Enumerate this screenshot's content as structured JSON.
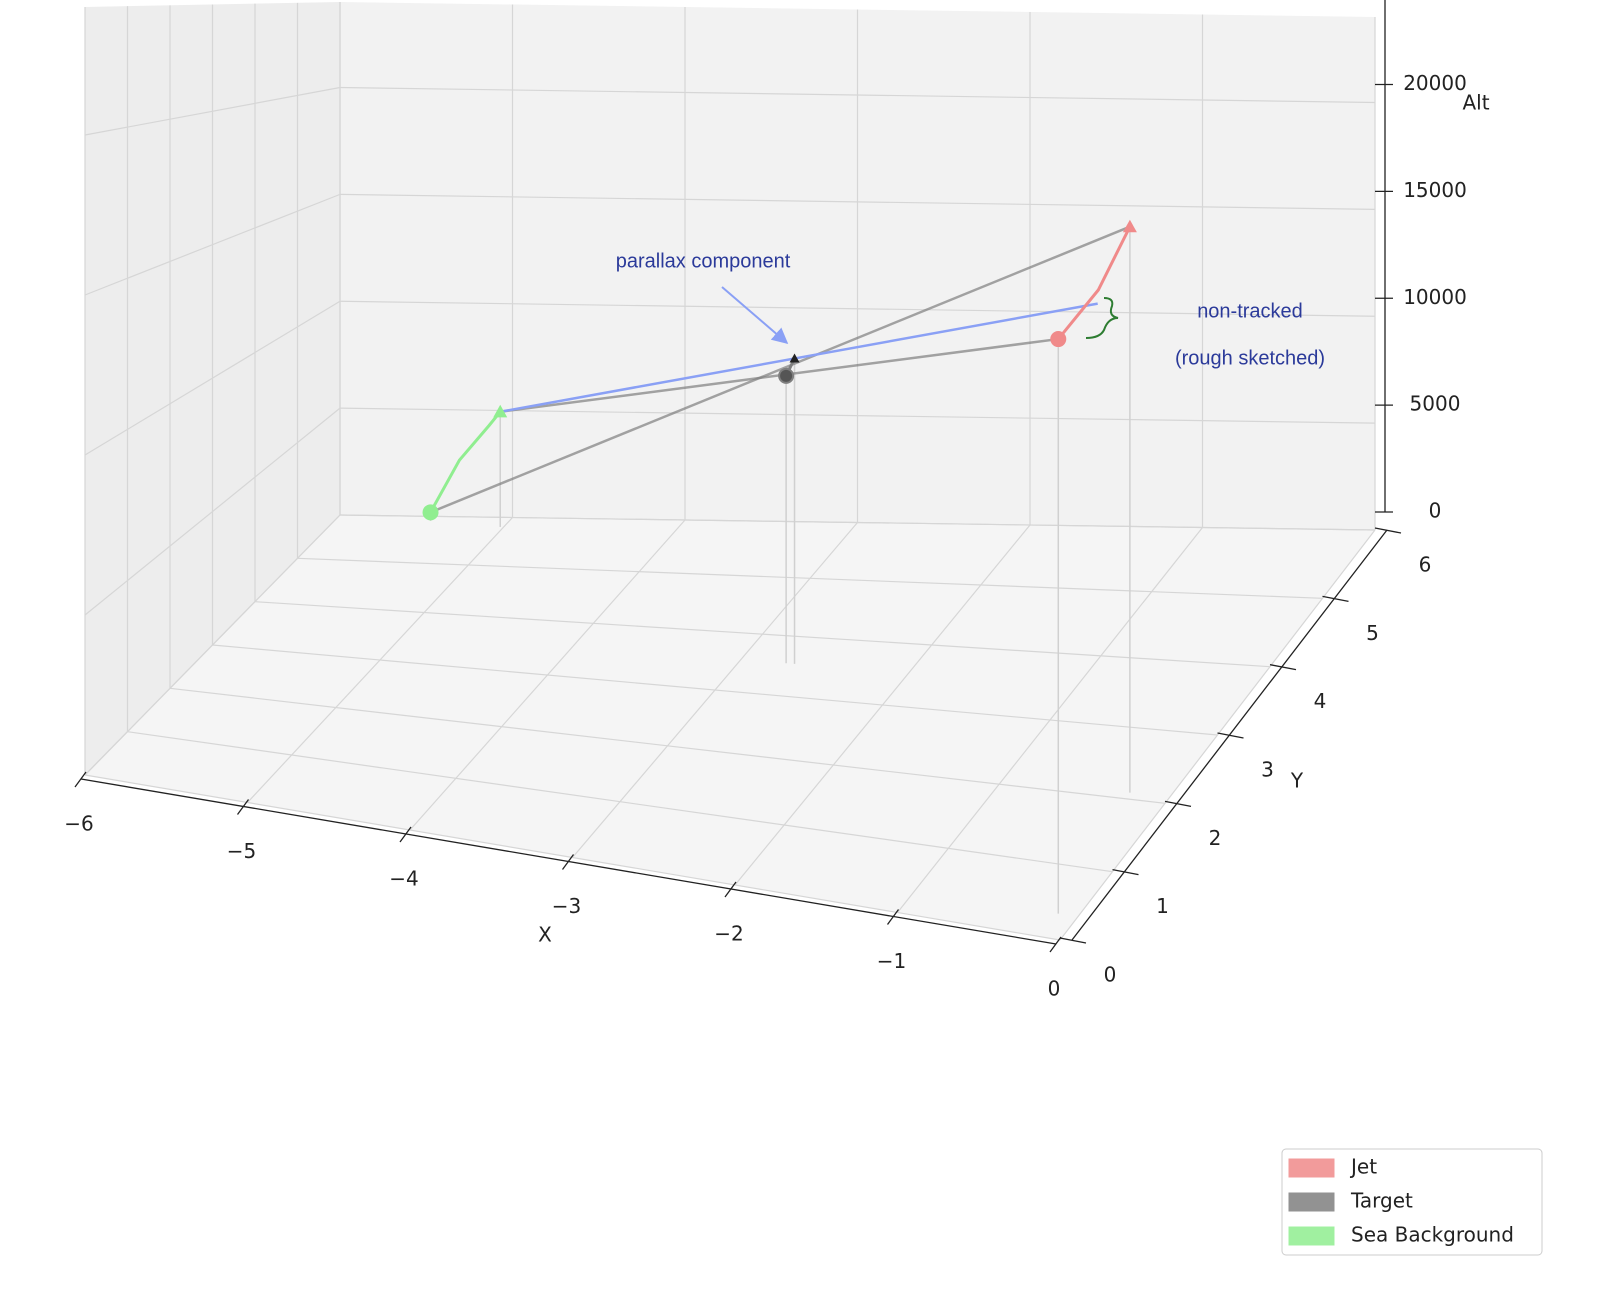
{
  "chart_data": {
    "type": "line3d",
    "xlabel": "X",
    "ylabel": "Y",
    "zlabel": "Alt",
    "xlim": [
      -6,
      0
    ],
    "ylim": [
      0,
      6
    ],
    "zlim": [
      0,
      24000
    ],
    "xticks": [
      {
        "value": -6,
        "label": "−6"
      },
      {
        "value": -5,
        "label": "−5"
      },
      {
        "value": -4,
        "label": "−4"
      },
      {
        "value": -3,
        "label": "−3"
      },
      {
        "value": -2,
        "label": "−2"
      },
      {
        "value": -1,
        "label": "−1"
      },
      0
    ],
    "yticks": [
      0,
      1,
      2,
      3,
      4,
      5,
      6
    ],
    "zticks": [
      0,
      5000,
      10000,
      15000,
      20000
    ],
    "grid": true,
    "legend_loc": "lower right",
    "series": [
      {
        "name": "Jet",
        "color": "#f08a8a",
        "x": [
          -0.12,
          -0.15,
          -0.24
        ],
        "y": [
          0.34,
          1.2,
          2.09
        ],
        "z": [
          18300,
          18900,
          20000
        ]
      },
      {
        "name": "Target",
        "color": "#7f7f7f",
        "x": [
          -2.73,
          -2.68
        ],
        "y": [
          3.54,
          3.54
        ],
        "z": [
          11170,
          11870
        ]
      },
      {
        "name": "Sea Background",
        "color": "#90ee90",
        "x": [
          -5.45,
          -5.27,
          -5.09,
          -5.02
        ],
        "y": [
          5.9,
          5.85,
          5.82,
          5.8
        ],
        "z": [
          400,
          2940,
          4620,
          5300
        ]
      }
    ],
    "annotations": [
      "parallax component",
      "non-tracked",
      "(rough sketched)"
    ]
  }
}
